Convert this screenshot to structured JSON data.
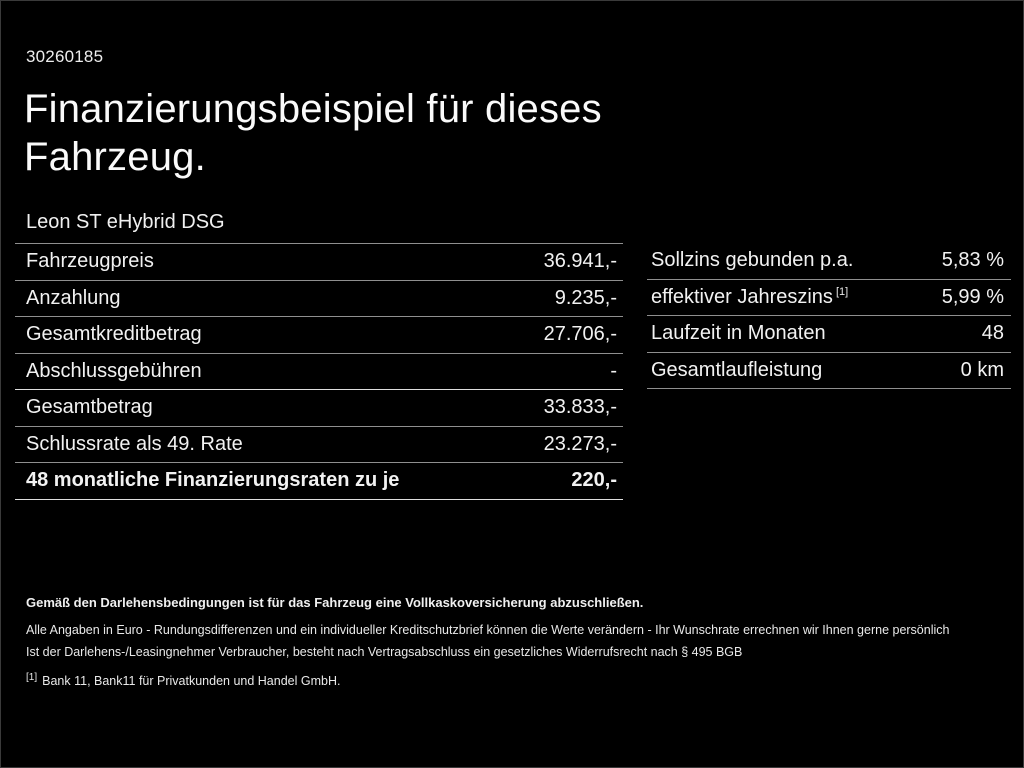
{
  "page": {
    "id_number": "30260185",
    "title_line1": "Finanzierungsbeispiel für dieses",
    "title_line2": "Fahrzeug.",
    "vehicle_model": "Leon ST eHybrid DSG"
  },
  "left_table": {
    "rows": [
      {
        "label": "Fahrzeugpreis",
        "value": "36.941,-"
      },
      {
        "label": "Anzahlung",
        "value": "9.235,-"
      },
      {
        "label": "Gesamtkreditbetrag",
        "value": "27.706,-"
      },
      {
        "label": "Abschlussgebühren",
        "value": "-"
      },
      {
        "label": "Gesamtbetrag",
        "value": "33.833,-"
      },
      {
        "label": "Schlussrate als 49. Rate",
        "value": "23.273,-"
      },
      {
        "label": "48 monatliche Finanzierungsraten zu je",
        "value": "220,-"
      }
    ]
  },
  "right_table": {
    "rows": [
      {
        "label": "Sollzins gebunden p.a.",
        "value": "5,83 %"
      },
      {
        "label": "effektiver Jahreszins",
        "footnote_marker": "[1]",
        "value": "5,99 %"
      },
      {
        "label": "Laufzeit in Monaten",
        "value": "48"
      },
      {
        "label": "Gesamtlaufleistung",
        "value": "0 km"
      }
    ]
  },
  "footer": {
    "line1": "Gemäß den Darlehensbedingungen ist für das Fahrzeug eine Vollkaskoversicherung abzuschließen.",
    "line2": "Alle Angaben in Euro - Rundungsdifferenzen und ein individueller Kreditschutzbrief können die Werte verändern - Ihr Wunschrate errechnen wir Ihnen gerne persönlich",
    "line3": "Ist der Darlehens-/Leasingnehmer Verbraucher, besteht nach Vertragsabschluss ein gesetzliches Widerrufsrecht nach § 495 BGB",
    "footnote_marker": "[1]",
    "footnote_text": "Bank 11, Bank11 für Privatkunden und Handel GmbH."
  },
  "colors": {
    "background": "#000000",
    "text": "#f2f2f2",
    "divider": "#8f8f8f",
    "divider_strong": "#dedede"
  }
}
